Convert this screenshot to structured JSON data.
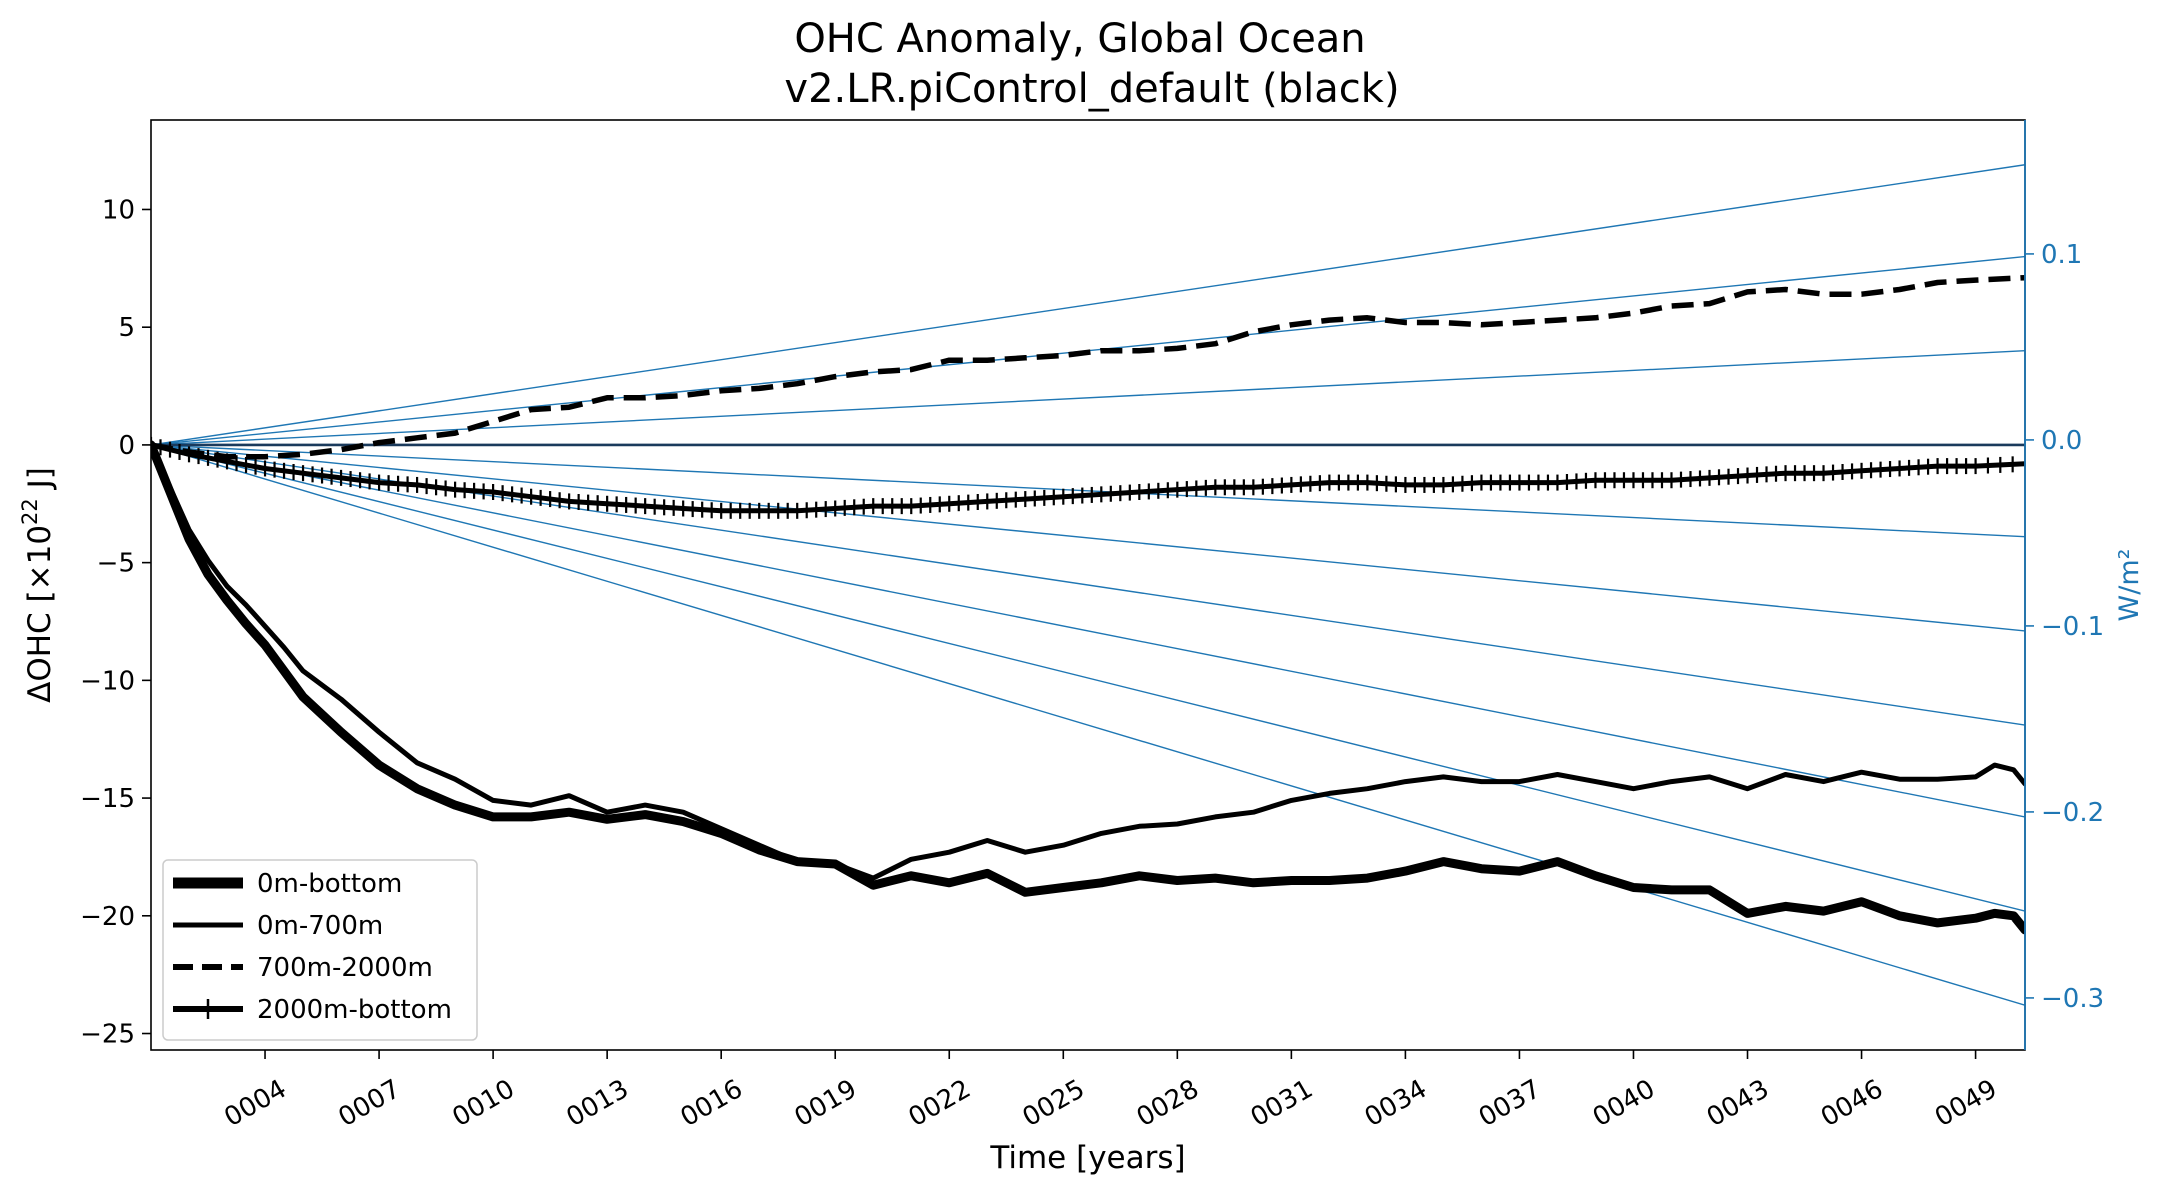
{
  "chart_data": {
    "type": "line",
    "title_line1": "OHC Anomaly, Global Ocean",
    "title_line2": "v2.LR.piControl_default (black)",
    "xlabel": "Time [years]",
    "ylabel_left": "ΔOHC [×10",
    "ylabel_left_sup": "22",
    "ylabel_left_tail": " J]",
    "ylabel_right": "W/m²",
    "xlim": [
      1,
      50.3
    ],
    "ylim_left": [
      -25.7,
      13.8
    ],
    "ylim_right": [
      -0.328,
      0.172
    ],
    "xticks": [
      {
        "value": 4,
        "label": "0004"
      },
      {
        "value": 7,
        "label": "0007"
      },
      {
        "value": 10,
        "label": "0010"
      },
      {
        "value": 13,
        "label": "0013"
      },
      {
        "value": 16,
        "label": "0016"
      },
      {
        "value": 19,
        "label": "0019"
      },
      {
        "value": 22,
        "label": "0022"
      },
      {
        "value": 25,
        "label": "0025"
      },
      {
        "value": 28,
        "label": "0028"
      },
      {
        "value": 31,
        "label": "0031"
      },
      {
        "value": 34,
        "label": "0034"
      },
      {
        "value": 37,
        "label": "0037"
      },
      {
        "value": 40,
        "label": "0040"
      },
      {
        "value": 43,
        "label": "0043"
      },
      {
        "value": 46,
        "label": "0046"
      },
      {
        "value": 49,
        "label": "0049"
      }
    ],
    "yticks_left": [
      {
        "value": 10,
        "label": "10"
      },
      {
        "value": 5,
        "label": "5"
      },
      {
        "value": 0,
        "label": "0"
      },
      {
        "value": -5,
        "label": "−5"
      },
      {
        "value": -10,
        "label": "−10"
      },
      {
        "value": -15,
        "label": "−15"
      },
      {
        "value": -20,
        "label": "−20"
      },
      {
        "value": -25,
        "label": "−25"
      }
    ],
    "yticks_right": [
      {
        "value": 0.1,
        "label": "0.1"
      },
      {
        "value": 0.0,
        "label": "0.0"
      },
      {
        "value": -0.1,
        "label": "−0.1"
      },
      {
        "value": -0.2,
        "label": "−0.2"
      },
      {
        "value": -0.3,
        "label": "−0.3"
      }
    ],
    "reference_lines": {
      "color": "#1f77b4",
      "origin_x": 1,
      "end_x": 50.3,
      "end_values": [
        11.9,
        8.0,
        4.0,
        0.0,
        -3.9,
        -7.9,
        -11.9,
        -15.8,
        -19.8,
        -23.8
      ]
    },
    "legend": {
      "position": "lower-left",
      "entries": [
        {
          "label": "0m-bottom",
          "style": "thick-solid"
        },
        {
          "label": "0m-700m",
          "style": "solid"
        },
        {
          "label": "700m-2000m",
          "style": "dashed"
        },
        {
          "label": "2000m-bottom",
          "style": "plus-marker"
        }
      ]
    },
    "series": [
      {
        "name": "0m-bottom",
        "style": "thick-solid",
        "x": [
          1,
          1.5,
          2,
          2.5,
          3,
          3.5,
          4,
          4.5,
          5,
          6,
          7,
          8,
          9,
          10,
          11,
          12,
          13,
          14,
          15,
          16,
          17,
          18,
          19,
          20,
          21,
          22,
          23,
          24,
          25,
          26,
          27,
          28,
          29,
          30,
          31,
          32,
          33,
          34,
          35,
          36,
          37,
          38,
          39,
          40,
          41,
          42,
          43,
          44,
          45,
          46,
          47,
          48,
          49,
          49.5,
          50,
          50.3
        ],
        "y": [
          0,
          -2.0,
          -4.0,
          -5.5,
          -6.6,
          -7.6,
          -8.5,
          -9.6,
          -10.7,
          -12.2,
          -13.6,
          -14.6,
          -15.3,
          -15.8,
          -15.8,
          -15.6,
          -15.9,
          -15.7,
          -16.0,
          -16.5,
          -17.2,
          -17.7,
          -17.8,
          -18.7,
          -18.3,
          -18.6,
          -18.2,
          -19.0,
          -18.8,
          -18.6,
          -18.3,
          -18.5,
          -18.4,
          -18.6,
          -18.5,
          -18.5,
          -18.4,
          -18.1,
          -17.7,
          -18.0,
          -18.1,
          -17.7,
          -18.3,
          -18.8,
          -18.9,
          -18.9,
          -19.9,
          -19.6,
          -19.8,
          -19.4,
          -20.0,
          -20.3,
          -20.1,
          -19.9,
          -20.0,
          -20.6
        ]
      },
      {
        "name": "0m-700m",
        "style": "solid",
        "x": [
          1,
          1.5,
          2,
          2.5,
          3,
          3.5,
          4,
          4.5,
          5,
          6,
          7,
          8,
          9,
          10,
          11,
          12,
          13,
          14,
          15,
          16,
          17,
          18,
          19,
          20,
          21,
          22,
          23,
          24,
          25,
          26,
          27,
          28,
          29,
          30,
          31,
          32,
          33,
          34,
          35,
          36,
          37,
          38,
          39,
          40,
          41,
          42,
          43,
          44,
          45,
          46,
          47,
          48,
          49,
          49.5,
          50,
          50.3
        ],
        "y": [
          0,
          -1.8,
          -3.6,
          -4.9,
          -6.0,
          -6.8,
          -7.7,
          -8.6,
          -9.6,
          -10.8,
          -12.2,
          -13.5,
          -14.2,
          -15.1,
          -15.3,
          -14.9,
          -15.6,
          -15.3,
          -15.6,
          -16.3,
          -17.0,
          -17.7,
          -17.8,
          -18.4,
          -17.6,
          -17.3,
          -16.8,
          -17.3,
          -17.0,
          -16.5,
          -16.2,
          -16.1,
          -15.8,
          -15.6,
          -15.1,
          -14.8,
          -14.6,
          -14.3,
          -14.1,
          -14.3,
          -14.3,
          -14.0,
          -14.3,
          -14.6,
          -14.3,
          -14.1,
          -14.6,
          -14.0,
          -14.3,
          -13.9,
          -14.2,
          -14.2,
          -14.1,
          -13.6,
          -13.8,
          -14.4
        ]
      },
      {
        "name": "700m-2000m",
        "style": "dashed",
        "x": [
          1,
          2,
          3,
          4,
          5,
          6,
          7,
          8,
          9,
          10,
          11,
          12,
          13,
          14,
          15,
          16,
          17,
          18,
          19,
          20,
          21,
          22,
          23,
          24,
          25,
          26,
          27,
          28,
          29,
          30,
          31,
          32,
          33,
          34,
          35,
          36,
          37,
          38,
          39,
          40,
          41,
          42,
          43,
          44,
          45,
          46,
          47,
          48,
          49,
          50.3
        ],
        "y": [
          0,
          -0.3,
          -0.5,
          -0.5,
          -0.4,
          -0.2,
          0.1,
          0.3,
          0.5,
          1.0,
          1.5,
          1.6,
          2.0,
          2.0,
          2.1,
          2.3,
          2.4,
          2.6,
          2.9,
          3.1,
          3.2,
          3.6,
          3.6,
          3.7,
          3.8,
          4.0,
          4.0,
          4.1,
          4.3,
          4.8,
          5.1,
          5.3,
          5.4,
          5.2,
          5.2,
          5.1,
          5.2,
          5.3,
          5.4,
          5.6,
          5.9,
          6.0,
          6.5,
          6.6,
          6.4,
          6.4,
          6.6,
          6.9,
          7.0,
          7.1
        ]
      },
      {
        "name": "2000m-bottom",
        "style": "plus-marker",
        "x": [
          1,
          2,
          3,
          4,
          5,
          6,
          7,
          8,
          9,
          10,
          11,
          12,
          13,
          14,
          15,
          16,
          17,
          18,
          19,
          20,
          21,
          22,
          23,
          24,
          25,
          26,
          27,
          28,
          29,
          30,
          31,
          32,
          33,
          34,
          35,
          36,
          37,
          38,
          39,
          40,
          41,
          42,
          43,
          44,
          45,
          46,
          47,
          48,
          49,
          50.3
        ],
        "y": [
          0,
          -0.4,
          -0.7,
          -1.0,
          -1.2,
          -1.4,
          -1.6,
          -1.7,
          -1.9,
          -2.0,
          -2.2,
          -2.4,
          -2.5,
          -2.6,
          -2.7,
          -2.8,
          -2.8,
          -2.8,
          -2.7,
          -2.6,
          -2.6,
          -2.5,
          -2.4,
          -2.3,
          -2.2,
          -2.1,
          -2.0,
          -1.9,
          -1.8,
          -1.8,
          -1.7,
          -1.6,
          -1.6,
          -1.7,
          -1.7,
          -1.6,
          -1.6,
          -1.6,
          -1.5,
          -1.5,
          -1.5,
          -1.4,
          -1.3,
          -1.2,
          -1.2,
          -1.1,
          -1.0,
          -0.9,
          -0.9,
          -0.8
        ]
      }
    ]
  }
}
